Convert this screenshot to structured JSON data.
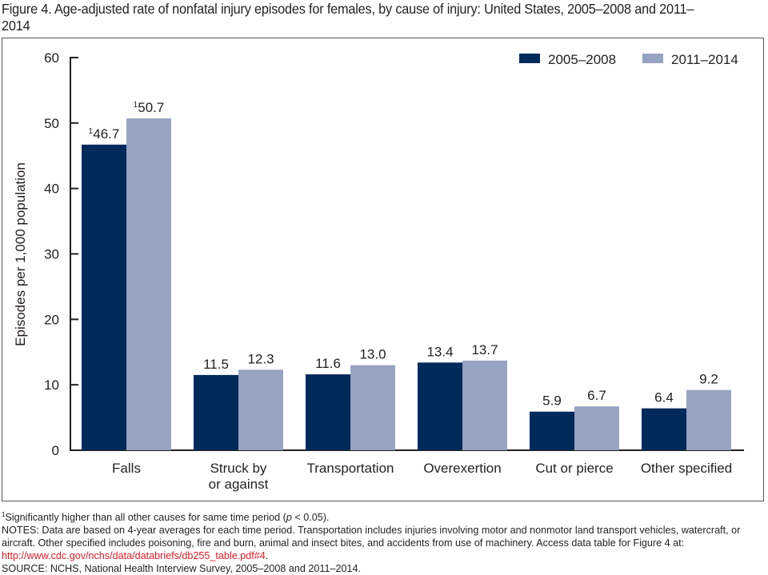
{
  "figure": {
    "title": "Figure 4. Age-adjusted rate of nonfatal injury episodes for females, by cause of injury: United States, 2005–2008 and 2011–2014"
  },
  "chart_data": {
    "type": "bar",
    "title": "Figure 4. Age-adjusted rate of nonfatal injury episodes for females, by cause of injury: United States, 2005–2008 and 2011–2014",
    "xlabel": "",
    "ylabel": "Episodes per 1,000 population",
    "ylim": [
      0,
      60
    ],
    "yticks": [
      0,
      10,
      20,
      30,
      40,
      50,
      60
    ],
    "grid": false,
    "legend_position": "top-right",
    "categories": [
      [
        "Falls"
      ],
      [
        "Struck by",
        "or against"
      ],
      [
        "Transportation"
      ],
      [
        "Overexertion"
      ],
      [
        "Cut or pierce"
      ],
      [
        "Other specified"
      ]
    ],
    "series": [
      {
        "name": "2005–2008",
        "color": "#002a5c",
        "values": [
          46.7,
          11.5,
          11.6,
          13.4,
          5.9,
          6.4
        ],
        "labels": [
          "46.7",
          "11.5",
          "11.6",
          "13.4",
          "5.9",
          "6.4"
        ],
        "footnote_marks": [
          "1",
          "",
          "",
          "",
          "",
          ""
        ]
      },
      {
        "name": "2011–2014",
        "color": "#96a3c2",
        "values": [
          50.7,
          12.3,
          13.0,
          13.7,
          6.7,
          9.2
        ],
        "labels": [
          "50.7",
          "12.3",
          "13.0",
          "13.7",
          "6.7",
          "9.2"
        ],
        "footnote_marks": [
          "1",
          "",
          "",
          "",
          "",
          ""
        ]
      }
    ]
  },
  "notes": {
    "footnote_mark": "1",
    "footnote_text": "Significantly higher than all other causes for same time period (",
    "footnote_p": "p",
    "footnote_end": " < 0.05).",
    "notes_text": "NOTES: Data are based on 4-year averages for each time period. Transportation includes injuries involving motor and nonmotor land transport vehicles, watercraft, or aircraft. Other specified includes poisoning, fire and burn, animal and insect bites, and accidents from use of machinery. Access data table for Figure 4 at: ",
    "link_text": "http://www.cdc.gov/nchs/data/databriefs/db255_table.pdf#4",
    "link_end": ".",
    "source_text": "SOURCE: NCHS, National Health Interview Survey, 2005–2008 and 2011–2014."
  }
}
